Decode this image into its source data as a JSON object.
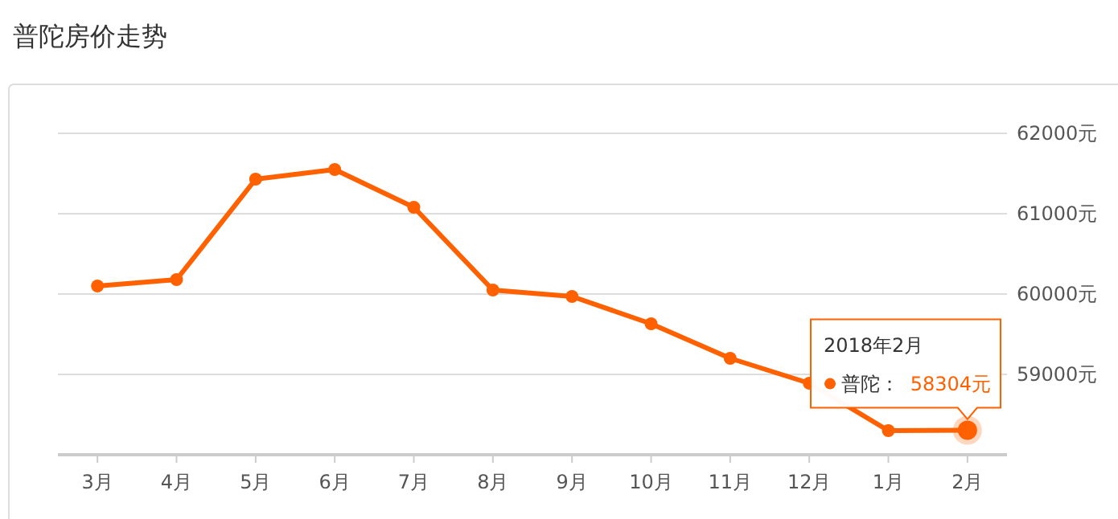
{
  "chart_data": {
    "type": "line",
    "title": "普陀房价走势",
    "categories": [
      "3月",
      "4月",
      "5月",
      "6月",
      "7月",
      "8月",
      "9月",
      "10月",
      "11月",
      "12月",
      "1月",
      "2月"
    ],
    "series": [
      {
        "name": "普陀：",
        "color": "#ff6000",
        "values": [
          60100,
          60180,
          61430,
          61550,
          61080,
          60050,
          59970,
          59630,
          59200,
          58890,
          58300,
          58304
        ],
        "value_labels": [
          null,
          null,
          null,
          null,
          null,
          null,
          null,
          null,
          null,
          null,
          null,
          "58304元"
        ]
      }
    ],
    "annotations": [
      "2018年2月"
    ],
    "ylim": [
      58000,
      62000
    ],
    "yticks": [
      {
        "value": 58000,
        "label": null
      },
      {
        "value": 59000,
        "label": "59000元"
      },
      {
        "value": 60000,
        "label": "60000元"
      },
      {
        "value": 61000,
        "label": "61000元"
      },
      {
        "value": 62000,
        "label": "62000元"
      }
    ],
    "grid": "y",
    "legend": "bottom right",
    "marker": "circle",
    "line_style": "solid"
  }
}
